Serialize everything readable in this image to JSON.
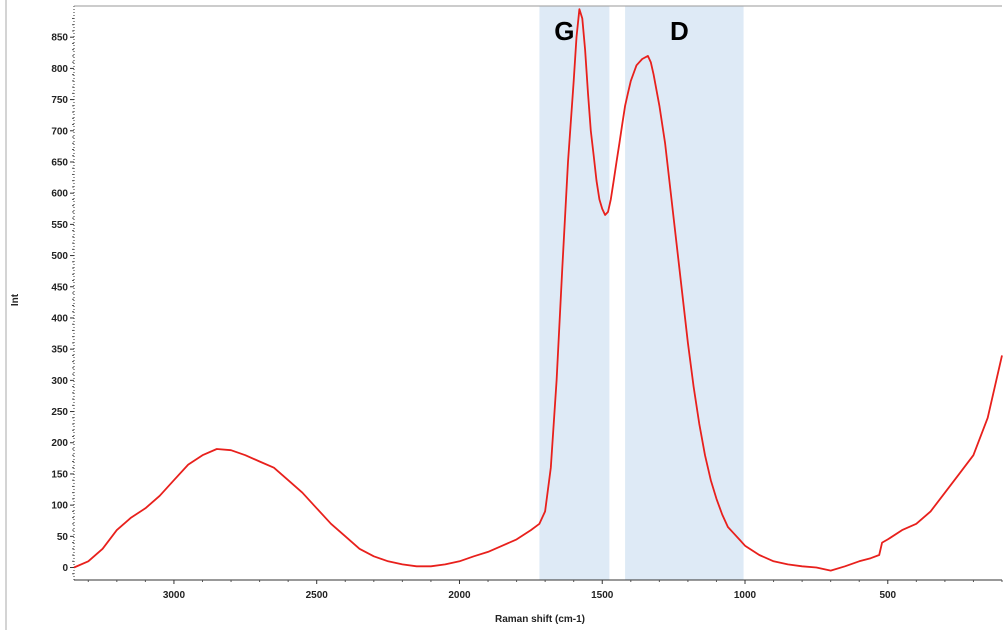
{
  "chart_data": {
    "type": "line",
    "title": "",
    "xlabel": "Raman shift (cm-1)",
    "ylabel": "Int",
    "xlim": [
      3350,
      100
    ],
    "ylim": [
      -20,
      900
    ],
    "x_reversed": true,
    "x_ticks": [
      3000,
      2500,
      2000,
      1500,
      1000,
      500
    ],
    "y_ticks": [
      0,
      50,
      100,
      150,
      200,
      250,
      300,
      350,
      400,
      450,
      500,
      550,
      600,
      650,
      700,
      750,
      800,
      850
    ],
    "series": [
      {
        "color": "#e8201c",
        "x": [
          3350,
          3300,
          3250,
          3200,
          3150,
          3100,
          3050,
          3000,
          2950,
          2900,
          2850,
          2800,
          2750,
          2700,
          2650,
          2600,
          2550,
          2500,
          2450,
          2400,
          2350,
          2300,
          2250,
          2200,
          2150,
          2100,
          2050,
          2000,
          1950,
          1900,
          1850,
          1800,
          1750,
          1720,
          1700,
          1680,
          1660,
          1640,
          1620,
          1600,
          1590,
          1580,
          1570,
          1560,
          1550,
          1540,
          1530,
          1520,
          1510,
          1500,
          1490,
          1480,
          1470,
          1460,
          1450,
          1440,
          1430,
          1420,
          1410,
          1400,
          1380,
          1360,
          1340,
          1330,
          1320,
          1300,
          1280,
          1260,
          1240,
          1220,
          1200,
          1180,
          1160,
          1140,
          1120,
          1100,
          1080,
          1060,
          1040,
          1020,
          1000,
          950,
          900,
          850,
          800,
          750,
          700,
          650,
          600,
          560,
          530,
          520,
          500,
          450,
          400,
          350,
          300,
          250,
          200,
          150,
          120,
          100
        ],
        "y": [
          0,
          10,
          30,
          60,
          80,
          95,
          115,
          140,
          165,
          180,
          190,
          188,
          180,
          170,
          160,
          140,
          120,
          95,
          70,
          50,
          30,
          18,
          10,
          5,
          2,
          2,
          5,
          10,
          18,
          25,
          35,
          45,
          60,
          70,
          90,
          160,
          300,
          480,
          650,
          780,
          850,
          895,
          880,
          830,
          760,
          700,
          660,
          620,
          590,
          575,
          565,
          570,
          590,
          620,
          650,
          680,
          710,
          740,
          760,
          780,
          805,
          815,
          820,
          810,
          790,
          740,
          680,
          600,
          520,
          440,
          360,
          290,
          230,
          180,
          140,
          110,
          85,
          65,
          55,
          45,
          35,
          20,
          10,
          5,
          2,
          0,
          -5,
          2,
          10,
          15,
          20,
          40,
          45,
          60,
          70,
          90,
          120,
          150,
          180,
          240,
          300,
          340
        ]
      }
    ],
    "shaded_bands": [
      {
        "label": "G",
        "x_start": 1720,
        "x_end": 1475,
        "color": "#deeaf6"
      },
      {
        "label": "D",
        "x_start": 1420,
        "x_end": 1005,
        "color": "#deeaf6"
      }
    ]
  }
}
